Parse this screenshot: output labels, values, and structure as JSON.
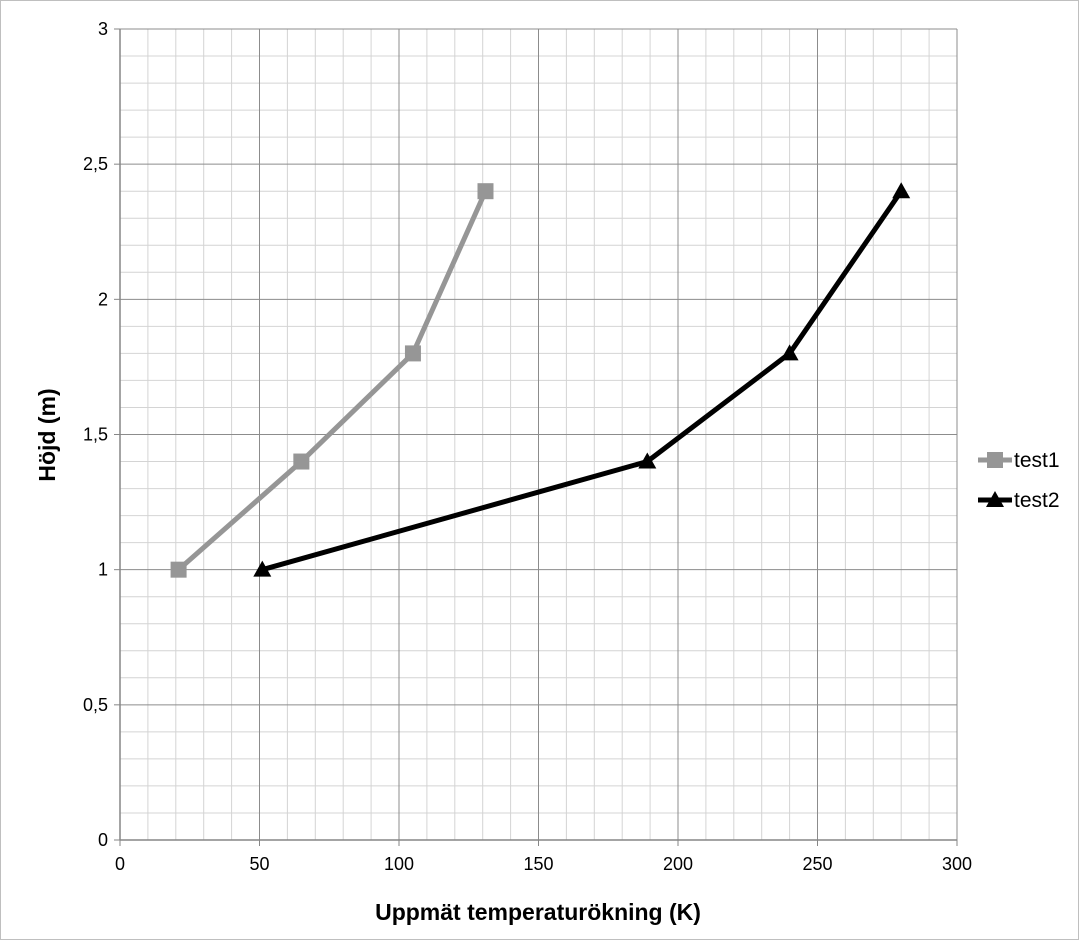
{
  "chart_data": {
    "type": "line",
    "title": "",
    "xlabel": "Uppmät temperaturökning (K)",
    "ylabel": "Höjd (m)",
    "xlim": [
      0,
      300
    ],
    "ylim": [
      0,
      3
    ],
    "x_ticks": [
      "0",
      "50",
      "100",
      "150",
      "200",
      "250",
      "300"
    ],
    "y_ticks": [
      "0",
      "0,5",
      "1",
      "1,5",
      "2",
      "2,5",
      "3"
    ],
    "grid": true,
    "legend_position": "right",
    "series": [
      {
        "name": "test1",
        "color": "#969696",
        "marker": "square",
        "points": [
          {
            "x": 21,
            "y": 1.0
          },
          {
            "x": 65,
            "y": 1.4
          },
          {
            "x": 105,
            "y": 1.8
          },
          {
            "x": 131,
            "y": 2.4
          }
        ]
      },
      {
        "name": "test2",
        "color": "#000000",
        "marker": "triangle",
        "points": [
          {
            "x": 51,
            "y": 1.0
          },
          {
            "x": 189,
            "y": 1.4
          },
          {
            "x": 240,
            "y": 1.8
          },
          {
            "x": 280,
            "y": 2.4
          }
        ]
      }
    ]
  }
}
